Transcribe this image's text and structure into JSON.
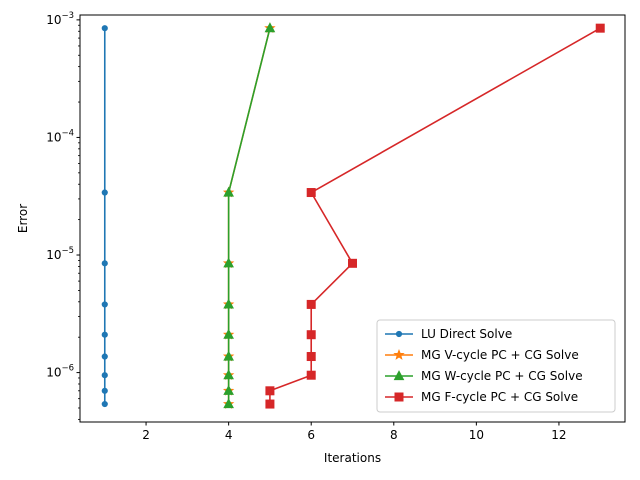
{
  "chart_data": {
    "type": "line",
    "title": "",
    "xlabel": "Iterations",
    "ylabel": "Error",
    "xlim": [
      0.4,
      13.6
    ],
    "ylim": [
      3.8e-07,
      0.0011
    ],
    "yscale": "log",
    "grid": false,
    "legend_position": "lower-right",
    "x_ticks": [
      2,
      4,
      6,
      8,
      10,
      12
    ],
    "x_tick_labels": [
      "2",
      "4",
      "6",
      "8",
      "10",
      "12"
    ],
    "y_ticks": [
      1e-06,
      1e-05,
      0.0001,
      0.001
    ],
    "y_tick_labels": [
      {
        "base": "10",
        "exp": "−6"
      },
      {
        "base": "10",
        "exp": "−5"
      },
      {
        "base": "10",
        "exp": "−4"
      },
      {
        "base": "10",
        "exp": "−3"
      }
    ],
    "series": [
      {
        "name": "LU Direct Solve",
        "color": "#1f77b4",
        "marker": "circle",
        "x": [
          1,
          1,
          1,
          1,
          1,
          1,
          1,
          1,
          1
        ],
        "y": [
          0.00085,
          3.4e-05,
          8.5e-06,
          3.8e-06,
          2.1e-06,
          1.37e-06,
          9.5e-07,
          7e-07,
          5.4e-07
        ]
      },
      {
        "name": "MG V-cycle PC + CG Solve",
        "color": "#ff7f0e",
        "marker": "star",
        "x": [
          5,
          4,
          4,
          4,
          4,
          4,
          4,
          4,
          4
        ],
        "y": [
          0.00085,
          3.4e-05,
          8.5e-06,
          3.8e-06,
          2.1e-06,
          1.37e-06,
          9.5e-07,
          7e-07,
          5.4e-07
        ]
      },
      {
        "name": "MG W-cycle PC + CG Solve",
        "color": "#2ca02c",
        "marker": "triangle",
        "x": [
          5,
          4,
          4,
          4,
          4,
          4,
          4,
          4,
          4
        ],
        "y": [
          0.00085,
          3.4e-05,
          8.5e-06,
          3.8e-06,
          2.1e-06,
          1.37e-06,
          9.5e-07,
          7e-07,
          5.4e-07
        ]
      },
      {
        "name": "MG F-cycle PC + CG Solve",
        "color": "#d62728",
        "marker": "square",
        "x": [
          13,
          6,
          7,
          6,
          6,
          6,
          6,
          5,
          5
        ],
        "y": [
          0.00085,
          3.4e-05,
          8.5e-06,
          3.8e-06,
          2.1e-06,
          1.37e-06,
          9.5e-07,
          7e-07,
          5.4e-07
        ]
      }
    ]
  }
}
